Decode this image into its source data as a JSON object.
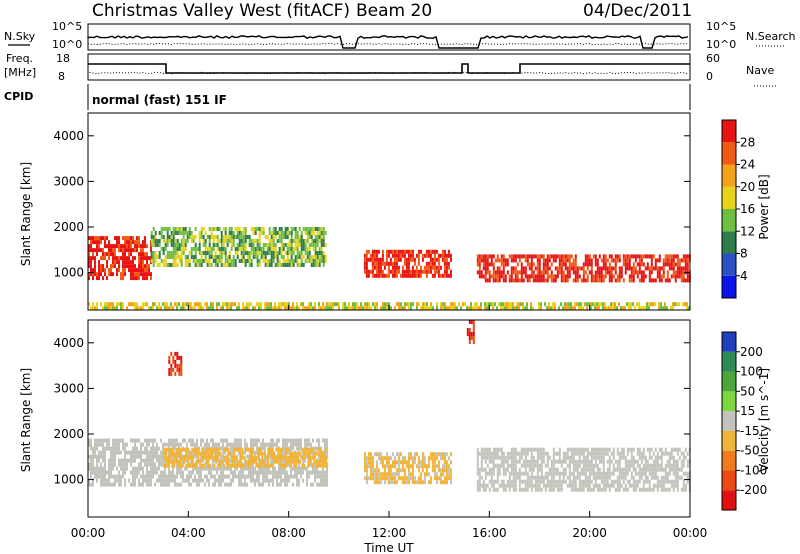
{
  "header": {
    "station": "Christmas Valley West (fitACF)",
    "beam": "Beam 20",
    "date": "04/Dec/2011",
    "mode": "normal (fast) 151 IF"
  },
  "top_panels": {
    "nsky_label": "N.Sky",
    "nsky_ticks": [
      "10^5",
      "10^0"
    ],
    "nsearch_label": "N.Search",
    "nsearch_ticks": [
      "10^5",
      "10^0"
    ],
    "freq_label_1": "Freq.",
    "freq_label_2": "[MHz]",
    "freq_ticks": [
      "18",
      "8"
    ],
    "nave_label": "Nave",
    "nave_ticks": [
      "60",
      "0"
    ],
    "cpid_label": "CPID"
  },
  "axes": {
    "ylabel": "Slant Range [km]",
    "xlabel": "Time UT",
    "yticks": [
      "1000",
      "2000",
      "3000",
      "4000"
    ],
    "xticks": [
      "00:00",
      "04:00",
      "08:00",
      "12:00",
      "16:00",
      "20:00",
      "00:00"
    ]
  },
  "colorbars": {
    "power": {
      "label": "Power [dB]",
      "ticks": [
        "4",
        "8",
        "12",
        "16",
        "20",
        "24",
        "28"
      ],
      "colors": [
        "#0a14e6",
        "#2b52c4",
        "#2e7d4a",
        "#6fbf3f",
        "#e9d21a",
        "#f4a21a",
        "#f05a14",
        "#e81313"
      ]
    },
    "velocity": {
      "label": "Velocity [m s^-1]",
      "ticks": [
        "200",
        "100",
        "50",
        "15",
        "-15",
        "-50",
        "-100",
        "-200"
      ],
      "colors": [
        "#1f3fbf",
        "#2e8b57",
        "#4ca63a",
        "#7dd63d",
        "#c3c3bb",
        "#f0b33a",
        "#f07a1e",
        "#ec4a14",
        "#e01010"
      ]
    }
  },
  "chart_data": [
    {
      "type": "heatmap",
      "title": "Power",
      "xlabel": "Time UT",
      "ylabel": "Slant Range [km]",
      "xlim": [
        0,
        24
      ],
      "ylim": [
        180,
        4500
      ],
      "zlabel": "Power [dB]",
      "features": [
        {
          "t0": 0.0,
          "t1": 2.5,
          "r0": 900,
          "r1": 1800,
          "z": 28
        },
        {
          "t0": 2.5,
          "t1": 9.5,
          "r0": 1200,
          "r1": 2000,
          "z": 12
        },
        {
          "t0": 11.0,
          "t1": 14.5,
          "r0": 900,
          "r1": 1500,
          "z": 28
        },
        {
          "t0": 15.5,
          "t1": 24.0,
          "r0": 800,
          "r1": 1400,
          "z": 28
        },
        {
          "t0": 0.0,
          "t1": 24.0,
          "r0": 200,
          "r1": 350,
          "z": 16
        }
      ]
    },
    {
      "type": "heatmap",
      "title": "Velocity",
      "xlabel": "Time UT",
      "ylabel": "Slant Range [km]",
      "xlim": [
        0,
        24
      ],
      "ylim": [
        180,
        4500
      ],
      "zlabel": "Velocity [m s^-1]",
      "features": [
        {
          "t0": 0.0,
          "t1": 9.5,
          "r0": 900,
          "r1": 1900,
          "z": 0
        },
        {
          "t0": 3.0,
          "t1": 9.5,
          "r0": 1300,
          "r1": 1700,
          "z": -40
        },
        {
          "t0": 11.0,
          "t1": 14.5,
          "r0": 900,
          "r1": 1600,
          "z": -20
        },
        {
          "t0": 15.5,
          "t1": 24.0,
          "r0": 800,
          "r1": 1700,
          "z": 0
        },
        {
          "t0": 3.2,
          "t1": 3.7,
          "r0": 3300,
          "r1": 3800,
          "z": -200
        },
        {
          "t0": 15.1,
          "t1": 15.4,
          "r0": 4000,
          "r1": 4500,
          "z": -200
        }
      ]
    }
  ]
}
